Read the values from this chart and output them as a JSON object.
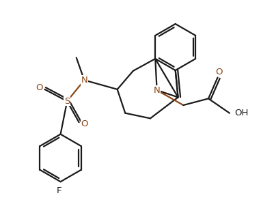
{
  "bg_color": "#ffffff",
  "line_color": "#1a1a1a",
  "heteroatom_color": "#8B4513",
  "line_width": 1.6,
  "figsize": [
    3.82,
    3.12
  ],
  "dpi": 100,
  "xlim": [
    0,
    9.5
  ],
  "ylim": [
    0,
    8.0
  ]
}
